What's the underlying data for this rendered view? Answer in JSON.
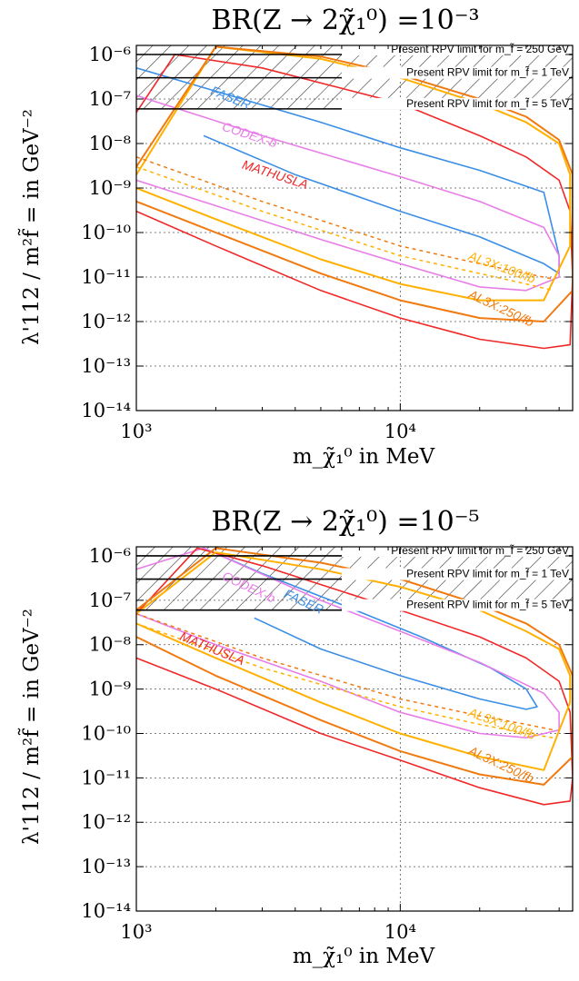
{
  "chart_data": [
    {
      "type": "line",
      "title": "BR(Z → 2χ̃₁⁰) =10⁻³",
      "xlabel": "m_χ̃₁⁰ in MeV",
      "ylabel": "λ'112 / m²f̃ = in GeV⁻²",
      "xscale": "log",
      "yscale": "log",
      "xlim": [
        1000,
        45000
      ],
      "ylim": [
        1e-14,
        1.6e-06
      ],
      "x_tick_labels": [
        "10³",
        "10⁴"
      ],
      "y_tick_labels": [
        "10⁻⁶",
        "10⁻⁷",
        "10⁻⁸",
        "10⁻⁹",
        "10⁻¹⁰",
        "10⁻¹¹",
        "10⁻¹²",
        "10⁻¹³",
        "10⁻¹⁴"
      ],
      "grid": true,
      "limits": [
        {
          "label": "Present RPV limit for m_f̃ = 250 GeV",
          "y": 1e-06
        },
        {
          "label": "Present RPV limit for m_f̃ = 1 TeV",
          "y": 3e-07
        },
        {
          "label": "Present RPV limit for m_f̃ = 5 TeV",
          "y": 6e-08
        }
      ],
      "series": [
        {
          "name": "FASER",
          "color": "#3a8ee6",
          "dash": false,
          "width": 1.6,
          "x": [
            1000,
            2000,
            5000,
            10000,
            20000,
            35000,
            40000,
            40000,
            35000,
            20000,
            10000,
            4000,
            1800
          ],
          "y": [
            5e-07,
            1.5e-07,
            3e-08,
            8e-09,
            2.5e-09,
            8e-10,
            3e-11,
            1.2e-11,
            2e-11,
            8e-11,
            3e-10,
            2e-09,
            1.5e-08
          ]
        },
        {
          "name": "CODEX-b",
          "color": "#e87ee8",
          "dash": false,
          "width": 1.6,
          "x": [
            1000,
            3000,
            10000,
            20000,
            35000,
            40000,
            40000,
            30000,
            20000,
            10000,
            5000,
            2000,
            1000
          ],
          "y": [
            1.2e-07,
            1.5e-08,
            1.8e-09,
            5e-10,
            1.3e-10,
            3e-11,
            1e-11,
            5e-12,
            6e-12,
            2e-11,
            7e-11,
            4e-10,
            1.5e-09
          ]
        },
        {
          "name": "MATHUSLA",
          "color": "#f02828",
          "dash": false,
          "width": 1.6,
          "x": [
            1000,
            1400,
            3000,
            10000,
            20000,
            30000,
            40000,
            44000,
            45000,
            44000,
            35000,
            20000,
            10000,
            5000,
            2000,
            1000
          ],
          "y": [
            5e-08,
            1e-06,
            5e-07,
            8e-08,
            1.5e-08,
            5e-09,
            1.5e-09,
            3e-10,
            1e-11,
            3e-13,
            2.5e-13,
            4e-13,
            1.2e-12,
            5e-12,
            5e-11,
            3e-10
          ]
        },
        {
          "name": "AL3X:100/fb",
          "color": "#ffb000",
          "dash": false,
          "width": 2.0,
          "x": [
            1000,
            2000,
            5000,
            10000,
            20000,
            30000,
            40000,
            44000,
            44000,
            35000,
            20000,
            10000,
            5000,
            2000,
            1000
          ],
          "y": [
            2e-09,
            1.5e-06,
            8e-07,
            3e-07,
            8e-08,
            3e-08,
            1e-08,
            2e-09,
            5e-11,
            3e-12,
            3e-12,
            7e-12,
            2.5e-11,
            2e-10,
            1e-09
          ]
        },
        {
          "name": "AL3X:250/fb",
          "color": "#f07a10",
          "dash": false,
          "width": 2.0,
          "x": [
            1000,
            2000,
            5000,
            10000,
            20000,
            30000,
            40000,
            45000,
            45000,
            35000,
            20000,
            10000,
            5000,
            2000,
            1000
          ],
          "y": [
            3e-09,
            1.5e-06,
            9e-07,
            3.5e-07,
            1e-07,
            4e-08,
            1.2e-08,
            2e-09,
            5e-12,
            1e-12,
            1.2e-12,
            3e-12,
            1.2e-11,
            1e-10,
            5e-10
          ]
        },
        {
          "name": "",
          "color": "#ffb000",
          "dash": true,
          "width": 1.5,
          "x": [
            1000,
            3000,
            10000,
            20000,
            30000,
            38000
          ],
          "y": [
            3e-09,
            3e-10,
            3e-11,
            1.2e-11,
            7e-12,
            5e-12
          ]
        },
        {
          "name": "",
          "color": "#f07a10",
          "dash": true,
          "width": 1.5,
          "x": [
            1000,
            3000,
            10000,
            20000,
            30000,
            38000
          ],
          "y": [
            5e-09,
            5e-10,
            5e-11,
            2e-11,
            1.2e-11,
            9e-12
          ]
        }
      ],
      "annotations": [
        {
          "text": "FASER",
          "x": 1900,
          "y": 1.3e-07,
          "color": "#3a8ee6",
          "angle": 22
        },
        {
          "text": "CODEX-b",
          "x": 2100,
          "y": 2e-08,
          "color": "#e87ee8",
          "angle": 18
        },
        {
          "text": "MATHUSLA",
          "x": 2500,
          "y": 2.8e-09,
          "color": "#f02828",
          "angle": 18
        },
        {
          "text": "AL3X:100/fb",
          "x": 18000,
          "y": 2.5e-11,
          "color": "#ffb000",
          "angle": 20
        },
        {
          "text": "AL3X:250/fb",
          "x": 18000,
          "y": 3.5e-12,
          "color": "#f07a10",
          "angle": 25
        }
      ]
    },
    {
      "type": "line",
      "title": "BR(Z → 2χ̃₁⁰) =10⁻⁵",
      "xlabel": "m_χ̃₁⁰ in MeV",
      "ylabel": "λ'112 / m²f̃ = in GeV⁻²",
      "xscale": "log",
      "yscale": "log",
      "xlim": [
        1000,
        45000
      ],
      "ylim": [
        1e-14,
        1.6e-06
      ],
      "x_tick_labels": [
        "10³",
        "10⁴"
      ],
      "y_tick_labels": [
        "10⁻⁶",
        "10⁻⁷",
        "10⁻⁸",
        "10⁻⁹",
        "10⁻¹⁰",
        "10⁻¹¹",
        "10⁻¹²",
        "10⁻¹³",
        "10⁻¹⁴"
      ],
      "grid": true,
      "limits": [
        {
          "label": "Present RPV limit for m_f̃ = 250 GeV",
          "y": 1e-06
        },
        {
          "label": "Present RPV limit for m_f̃ = 1 TeV",
          "y": 3e-07
        },
        {
          "label": "Present RPV limit for m_f̃ = 5 TeV",
          "y": 6e-08
        }
      ],
      "series": [
        {
          "name": "FASER",
          "color": "#3a8ee6",
          "dash": false,
          "width": 1.6,
          "x": [
            1800,
            3000,
            6000,
            12000,
            22000,
            30000,
            33000,
            30000,
            20000,
            10000,
            5000,
            2800
          ],
          "y": [
            1.5e-06,
            4e-07,
            8e-08,
            1.5e-08,
            3e-09,
            1e-09,
            4e-10,
            3.5e-10,
            6e-10,
            2e-09,
            8e-09,
            4e-08
          ]
        },
        {
          "name": "CODEX-b",
          "color": "#e87ee8",
          "dash": false,
          "width": 1.6,
          "x": [
            1000,
            1800,
            5000,
            10000,
            20000,
            35000,
            40000,
            40000,
            30000,
            20000,
            10000,
            5000,
            2000,
            1000
          ],
          "y": [
            5e-07,
            1.5e-06,
            1e-07,
            2e-08,
            4e-09,
            8e-10,
            3e-10,
            1.2e-10,
            8e-11,
            1e-10,
            3e-10,
            1.5e-09,
            1e-08,
            5e-08
          ]
        },
        {
          "name": "MATHUSLA",
          "color": "#f02828",
          "dash": false,
          "width": 1.6,
          "x": [
            1000,
            1700,
            3000,
            10000,
            20000,
            30000,
            40000,
            44000,
            45000,
            44000,
            35000,
            20000,
            10000,
            5000,
            2000,
            1000
          ],
          "y": [
            5e-08,
            1.5e-06,
            6e-07,
            6e-08,
            1.5e-08,
            5e-09,
            1.5e-09,
            3e-10,
            1e-11,
            3e-12,
            2.5e-12,
            6e-12,
            2.5e-11,
            1e-10,
            1e-09,
            5e-09
          ]
        },
        {
          "name": "AL3X:100/fb",
          "color": "#ffb000",
          "dash": false,
          "width": 2.0,
          "x": [
            1000,
            2000,
            5000,
            10000,
            20000,
            30000,
            40000,
            44000,
            44000,
            35000,
            20000,
            10000,
            5000,
            2000,
            1000
          ],
          "y": [
            5e-08,
            1.2e-06,
            5e-07,
            2e-07,
            6e-08,
            2e-08,
            8e-09,
            2e-09,
            5e-10,
            1.5e-11,
            3e-11,
            1e-10,
            5e-10,
            5e-09,
            3e-08
          ]
        },
        {
          "name": "AL3X:250/fb",
          "color": "#f07a10",
          "dash": false,
          "width": 2.0,
          "x": [
            1000,
            2000,
            5000,
            10000,
            20000,
            30000,
            40000,
            45000,
            45000,
            35000,
            20000,
            10000,
            5000,
            2000,
            1000
          ],
          "y": [
            6e-08,
            1.5e-06,
            7e-07,
            3e-07,
            8e-08,
            3e-08,
            1e-08,
            2e-09,
            3e-11,
            7e-12,
            1.2e-11,
            4e-11,
            2e-10,
            2e-09,
            1.5e-08
          ]
        },
        {
          "name": "",
          "color": "#ffb000",
          "dash": true,
          "width": 1.5,
          "x": [
            1000,
            3000,
            10000,
            20000,
            30000,
            38000
          ],
          "y": [
            3e-08,
            3e-09,
            4e-10,
            1.6e-10,
            1e-10,
            8e-11
          ]
        },
        {
          "name": "",
          "color": "#f07a10",
          "dash": true,
          "width": 1.5,
          "x": [
            1000,
            3000,
            10000,
            20000,
            30000,
            38000
          ],
          "y": [
            5e-08,
            5e-09,
            6e-10,
            2.5e-10,
            1.6e-10,
            1.2e-10
          ]
        }
      ],
      "annotations": [
        {
          "text": "CODEX-b",
          "x": 2100,
          "y": 3e-07,
          "color": "#e87ee8",
          "angle": 25
        },
        {
          "text": "FASER",
          "x": 3600,
          "y": 1.2e-07,
          "color": "#3a8ee6",
          "angle": 25
        },
        {
          "text": "MATHUSLA",
          "x": 1450,
          "y": 1.3e-08,
          "color": "#f02828",
          "angle": 22
        },
        {
          "text": "AL3X:100/fb",
          "x": 18000,
          "y": 2.5e-10,
          "color": "#ffb000",
          "angle": 20
        },
        {
          "text": "AL3X:250/fb",
          "x": 18000,
          "y": 3.5e-11,
          "color": "#f07a10",
          "angle": 25
        }
      ]
    }
  ]
}
